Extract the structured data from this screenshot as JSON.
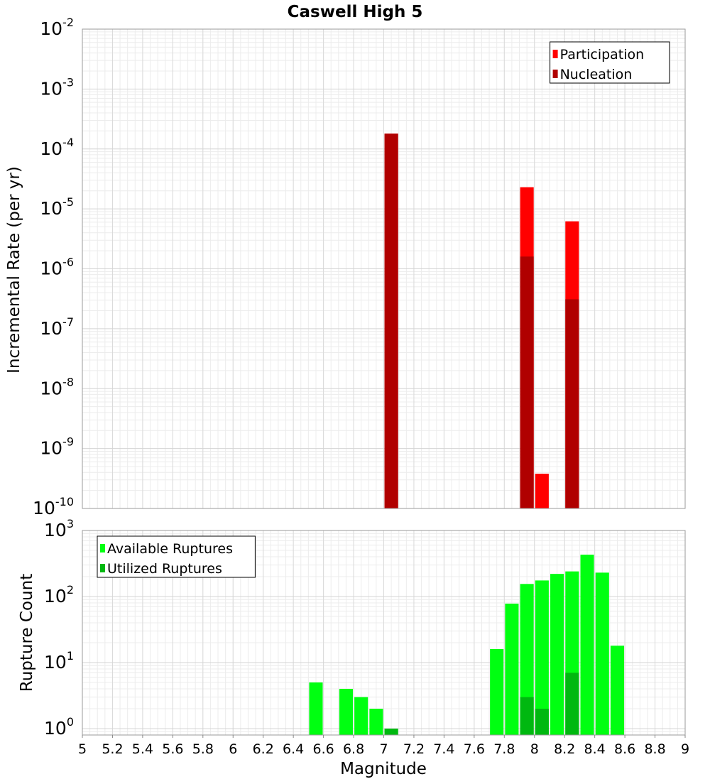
{
  "chart_data": [
    {
      "type": "bar",
      "title": "Caswell High 5",
      "ylabel": "Incremental Rate (per yr)",
      "xlabel": "",
      "xlim": [
        5,
        9
      ],
      "ylim": [
        1e-10,
        0.01
      ],
      "yscale": "log",
      "grid": true,
      "legend_position": "top-right",
      "bar_width": 0.09,
      "y_ticks": [
        {
          "base": "10",
          "exp": "-10",
          "value": 1e-10
        },
        {
          "base": "10",
          "exp": "-9",
          "value": 1e-09
        },
        {
          "base": "10",
          "exp": "-8",
          "value": 1e-08
        },
        {
          "base": "10",
          "exp": "-7",
          "value": 1e-07
        },
        {
          "base": "10",
          "exp": "-6",
          "value": 1e-06
        },
        {
          "base": "10",
          "exp": "-5",
          "value": 1e-05
        },
        {
          "base": "10",
          "exp": "-4",
          "value": 0.0001
        },
        {
          "base": "10",
          "exp": "-3",
          "value": 0.001
        },
        {
          "base": "10",
          "exp": "-2",
          "value": 0.01
        }
      ],
      "series": [
        {
          "name": "Participation",
          "color": "#ff0000",
          "x": [
            7.05,
            7.95,
            8.05,
            8.25
          ],
          "values": [
            0.00018,
            2.3e-05,
            3.8e-10,
            6.2e-06
          ]
        },
        {
          "name": "Nucleation",
          "color": "#b00000",
          "x": [
            7.05,
            7.95,
            8.25
          ],
          "values": [
            0.00018,
            1.6e-06,
            3.1e-07
          ]
        }
      ]
    },
    {
      "type": "bar",
      "title": "",
      "ylabel": "Rupture Count",
      "xlabel": "Magnitude",
      "xlim": [
        5,
        9
      ],
      "ylim": [
        0.8,
        1000
      ],
      "yscale": "log",
      "grid": true,
      "legend_position": "top-left",
      "bar_width": 0.09,
      "x_ticks": [
        "5",
        "5.2",
        "5.4",
        "5.6",
        "5.8",
        "6",
        "6.2",
        "6.4",
        "6.6",
        "6.8",
        "7",
        "7.2",
        "7.4",
        "7.6",
        "7.8",
        "8",
        "8.2",
        "8.4",
        "8.6",
        "8.8",
        "9"
      ],
      "y_ticks": [
        {
          "base": "10",
          "exp": "0",
          "value": 1
        },
        {
          "base": "10",
          "exp": "1",
          "value": 10
        },
        {
          "base": "10",
          "exp": "2",
          "value": 100
        },
        {
          "base": "10",
          "exp": "3",
          "value": 1000
        }
      ],
      "series": [
        {
          "name": "Available Ruptures",
          "color": "#00ff11",
          "x": [
            6.55,
            6.75,
            6.85,
            6.95,
            7.05,
            7.75,
            7.85,
            7.95,
            8.05,
            8.15,
            8.25,
            8.35,
            8.45,
            8.55
          ],
          "values": [
            5,
            4,
            3,
            2,
            1,
            16,
            78,
            155,
            175,
            220,
            240,
            430,
            230,
            18
          ]
        },
        {
          "name": "Utilized Ruptures",
          "color": "#00b810",
          "x": [
            7.05,
            7.95,
            8.05,
            8.25
          ],
          "values": [
            1,
            3,
            2,
            7
          ]
        }
      ]
    }
  ]
}
